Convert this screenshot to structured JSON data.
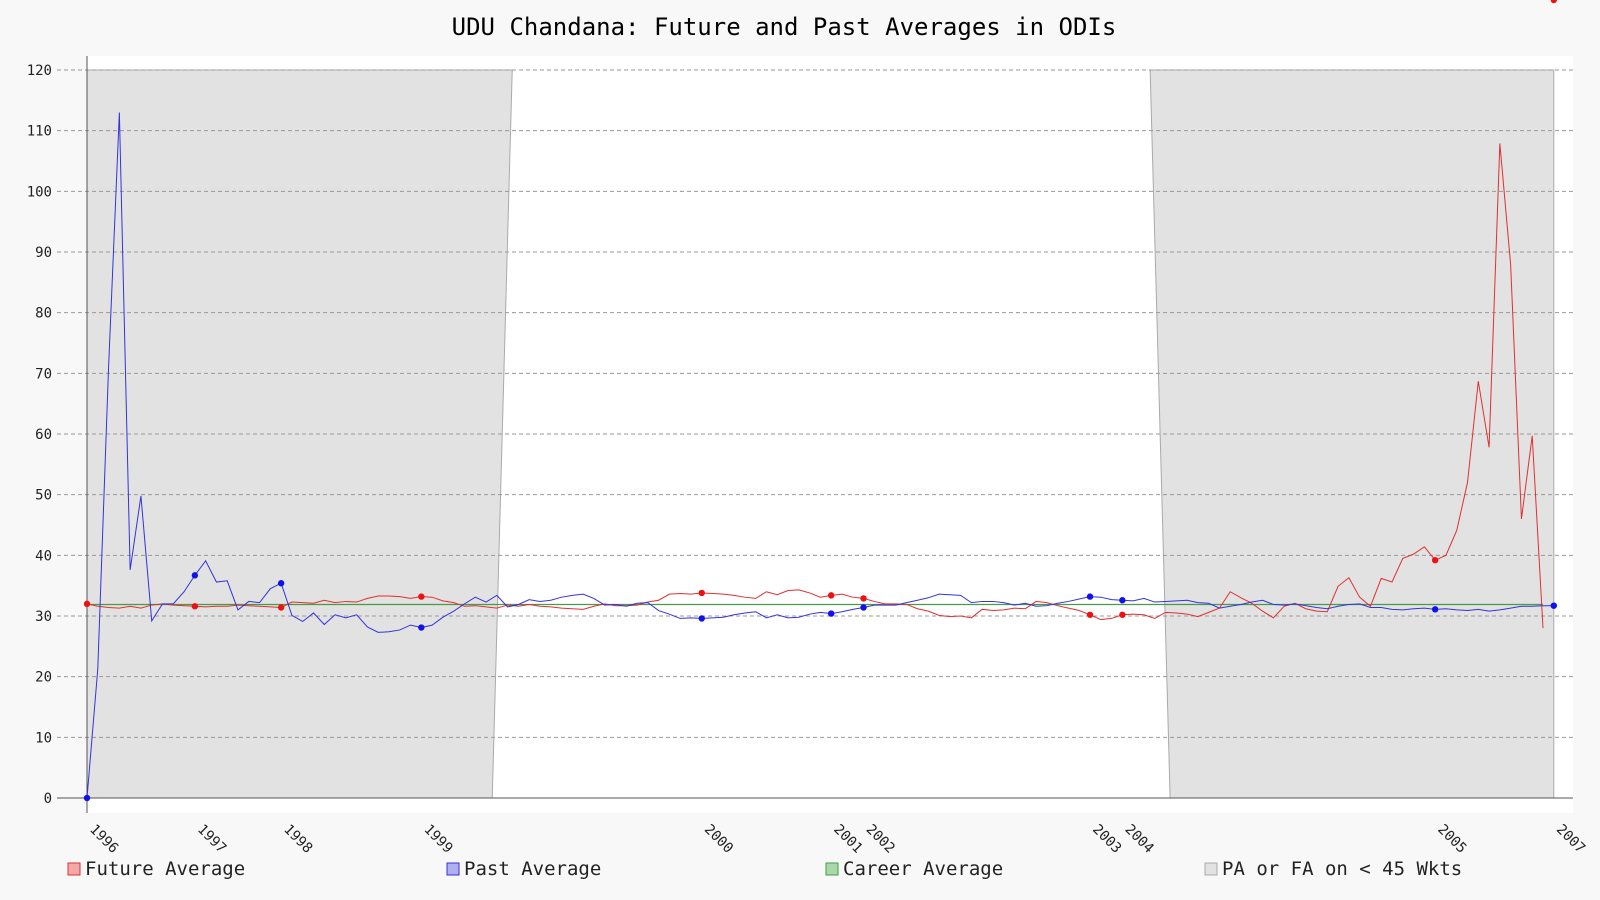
{
  "chart_data": {
    "type": "line",
    "title": "UDU Chandana: Future and Past Averages in ODIs",
    "xlabel": "",
    "ylabel": "",
    "ylim": [
      0,
      120
    ],
    "yticks": [
      0,
      10,
      20,
      30,
      40,
      50,
      60,
      70,
      80,
      90,
      100,
      110,
      120
    ],
    "x_year_ticks": [
      {
        "label": "1996",
        "index": 0
      },
      {
        "label": "1997",
        "index": 10
      },
      {
        "label": "1998",
        "index": 18
      },
      {
        "label": "1999",
        "index": 31
      },
      {
        "label": "2000",
        "index": 57
      },
      {
        "label": "2001",
        "index": 69
      },
      {
        "label": "2002",
        "index": 72
      },
      {
        "label": "2003",
        "index": 93
      },
      {
        "label": "2004",
        "index": 96
      },
      {
        "label": "2005",
        "index": 125
      },
      {
        "label": "2007",
        "index": 136
      }
    ],
    "low_wickets_regions": [
      {
        "start_index": 0,
        "end_index": 38.5
      },
      {
        "start_index": 99.5,
        "end_index": 136
      }
    ],
    "career_average": 31.9,
    "series": [
      {
        "name": "Future Average",
        "color": "#e03030",
        "marker_indices": [
          0,
          10,
          18,
          31,
          57,
          69,
          72,
          93,
          96,
          125,
          136
        ],
        "values": [
          32.0,
          31.6,
          31.4,
          31.3,
          31.6,
          31.3,
          31.8,
          32.0,
          31.8,
          31.7,
          31.6,
          31.5,
          31.6,
          31.6,
          31.8,
          31.7,
          31.6,
          31.5,
          31.4,
          32.3,
          32.2,
          32.1,
          32.6,
          32.2,
          32.4,
          32.3,
          32.9,
          33.3,
          33.3,
          33.2,
          32.9,
          33.2,
          33.1,
          32.5,
          32.2,
          31.6,
          31.7,
          31.5,
          31.3,
          31.8,
          31.6,
          31.9,
          31.6,
          31.5,
          31.3,
          31.2,
          31.1,
          31.6,
          32.0,
          31.7,
          31.7,
          31.8,
          32.3,
          32.6,
          33.6,
          33.7,
          33.6,
          33.8,
          33.7,
          33.6,
          33.4,
          33.1,
          32.9,
          34.0,
          33.5,
          34.2,
          34.3,
          33.8,
          33.1,
          33.4,
          33.6,
          33.1,
          32.9,
          32.4,
          32.0,
          32.0,
          31.9,
          31.2,
          30.8,
          30.1,
          29.9,
          30.0,
          29.7,
          31.1,
          30.9,
          31.0,
          31.3,
          31.2,
          32.4,
          32.2,
          31.7,
          31.3,
          30.9,
          30.2,
          29.4,
          29.6,
          30.2,
          30.3,
          30.2,
          29.6,
          30.6,
          30.5,
          30.3,
          29.9,
          30.6,
          31.3,
          34.0,
          33.0,
          32.1,
          30.8,
          29.7,
          31.6,
          32.1,
          31.2,
          30.8,
          30.7,
          34.9,
          36.3,
          33.1,
          31.6,
          36.2,
          35.6,
          39.5,
          40.2,
          41.4,
          39.2,
          40.0,
          44.1,
          52.0,
          68.7,
          57.8,
          107.9,
          87.9,
          46.0,
          59.7,
          28.0
        ]
      },
      {
        "name": "Past Average",
        "color": "#3333dd",
        "marker_indices": [
          0,
          10,
          18,
          31,
          57,
          69,
          72,
          93,
          96,
          125,
          136
        ],
        "values": [
          0,
          21.3,
          71.0,
          113.0,
          37.6,
          49.8,
          29.2,
          32.0,
          32.0,
          34.0,
          36.7,
          39.1,
          35.6,
          35.8,
          31.0,
          32.4,
          32.2,
          34.5,
          35.4,
          30.1,
          29.1,
          30.5,
          28.6,
          30.2,
          29.7,
          30.2,
          28.2,
          27.3,
          27.4,
          27.7,
          28.5,
          28.1,
          28.5,
          29.8,
          30.8,
          32.0,
          33.1,
          32.3,
          33.4,
          31.5,
          31.9,
          32.7,
          32.4,
          32.6,
          33.1,
          33.4,
          33.6,
          32.9,
          31.8,
          31.9,
          31.6,
          32.1,
          32.2,
          30.9,
          30.3,
          29.6,
          29.7,
          29.6,
          29.7,
          29.8,
          30.2,
          30.5,
          30.7,
          29.7,
          30.2,
          29.7,
          29.8,
          30.3,
          30.6,
          30.4,
          30.7,
          31.1,
          31.4,
          31.8,
          31.8,
          31.8,
          32.2,
          32.6,
          33.0,
          33.6,
          33.5,
          33.4,
          32.2,
          32.4,
          32.4,
          32.2,
          31.8,
          32.1,
          31.6,
          31.7,
          32.1,
          32.4,
          32.8,
          33.2,
          33.1,
          32.7,
          32.6,
          32.5,
          32.9,
          32.3,
          32.4,
          32.5,
          32.6,
          32.2,
          32.1,
          31.3,
          31.6,
          31.9,
          32.3,
          32.6,
          31.9,
          31.8,
          32.0,
          31.7,
          31.4,
          31.2,
          31.6,
          31.9,
          32.0,
          31.4,
          31.4,
          31.1,
          31.0,
          31.2,
          31.3,
          31.1,
          31.2,
          31.0,
          30.9,
          31.1,
          30.8,
          31.0,
          31.3,
          31.6,
          31.6,
          31.7,
          31.7
        ]
      },
      {
        "name": "Career Average",
        "color": "#4a9a4a"
      }
    ],
    "legend": [
      {
        "label": "Future Average",
        "fill": "#f4a8a8",
        "stroke": "#e03030"
      },
      {
        "label": "Past Average",
        "fill": "#b0b0f0",
        "stroke": "#3333dd"
      },
      {
        "label": "Career Average",
        "fill": "#a8d8a8",
        "stroke": "#4a9a4a"
      },
      {
        "label": "PA or FA on < 45 Wkts",
        "fill": "#e2e2e2",
        "stroke": "#aaaaaa"
      }
    ],
    "grid": true,
    "legend_position": "bottom"
  }
}
